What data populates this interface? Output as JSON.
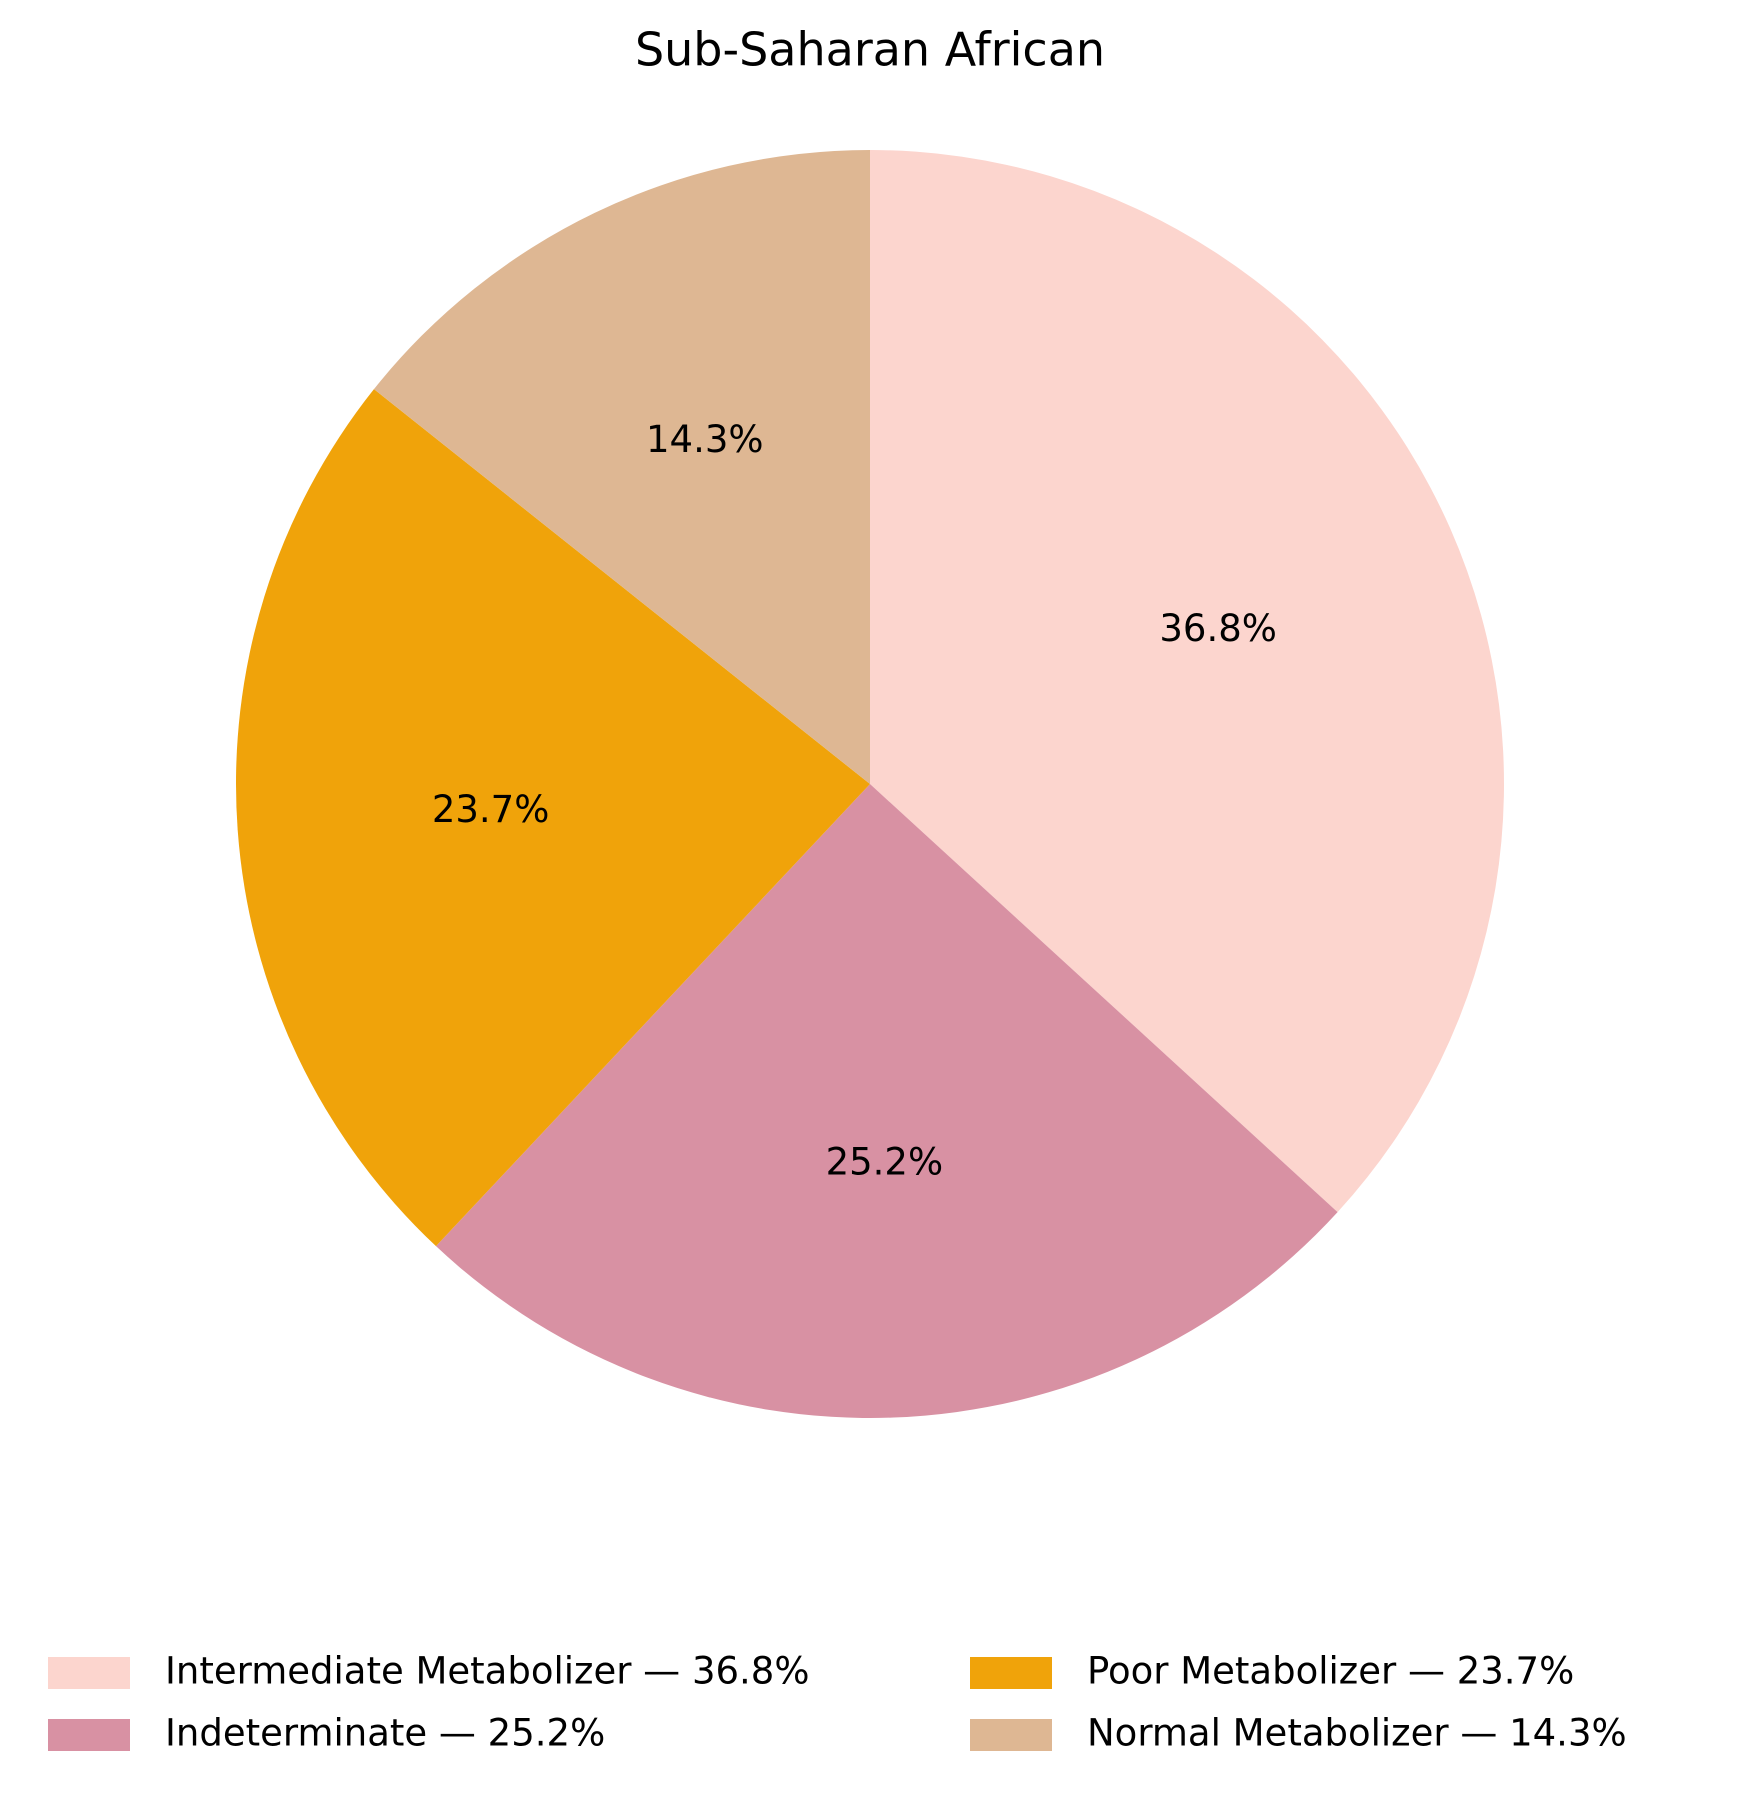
{
  "chart_data": {
    "type": "pie",
    "title": "Sub-Saharan African",
    "labels": [
      "Intermediate Metabolizer — 36.8%",
      "Indeterminate — 25.2%",
      "Poor Metabolizer — 23.7%",
      "Normal Metabolizer — 14.3%"
    ],
    "values": [
      36.8,
      25.2,
      23.7,
      14.3
    ],
    "value_labels": [
      "36.8%",
      "25.2%",
      "23.7%",
      "14.3%"
    ],
    "colors": [
      "#fcd5ce",
      "#d891a3",
      "#f0a30a",
      "#deb793"
    ],
    "start_angle": 90,
    "direction": "clockwise",
    "legend": "lower center",
    "legend_columns": 2
  }
}
